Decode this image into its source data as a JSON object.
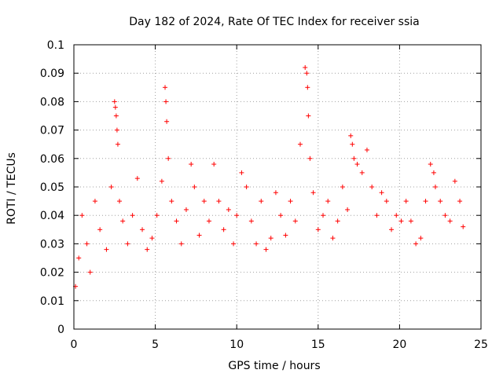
{
  "chart_data": {
    "type": "scatter",
    "title": "Day 182 of 2024, Rate Of TEC Index for receiver ssia",
    "xlabel": "GPS time / hours",
    "ylabel": "ROTI / TECUs",
    "xlim": [
      0,
      25
    ],
    "ylim": [
      0,
      0.1
    ],
    "xticks": [
      "0",
      "5",
      "10",
      "15",
      "20",
      "25"
    ],
    "yticks": [
      "0",
      "0.01",
      "0.02",
      "0.03",
      "0.04",
      "0.05",
      "0.06",
      "0.07",
      "0.08",
      "0.09",
      "0.1"
    ],
    "grid": true,
    "marker": "plus",
    "series": [
      {
        "color": "#ff0000",
        "x": [
          0.1,
          0.3,
          0.5,
          0.8,
          1.0,
          1.3,
          1.6,
          2.0,
          2.3,
          2.5,
          2.55,
          2.6,
          2.65,
          2.7,
          2.8,
          3.0,
          3.3,
          3.6,
          3.9,
          4.2,
          4.5,
          4.8,
          5.1,
          5.4,
          5.6,
          5.65,
          5.7,
          5.8,
          6.0,
          6.3,
          6.6,
          6.9,
          7.2,
          7.4,
          7.7,
          8.0,
          8.3,
          8.6,
          8.9,
          9.2,
          9.5,
          9.8,
          10.0,
          10.3,
          10.6,
          10.9,
          11.2,
          11.5,
          11.8,
          12.1,
          12.4,
          12.7,
          13.0,
          13.3,
          13.6,
          13.9,
          14.2,
          14.3,
          14.35,
          14.4,
          14.5,
          14.7,
          15.0,
          15.3,
          15.6,
          15.9,
          16.2,
          16.5,
          16.8,
          17.0,
          17.1,
          17.2,
          17.4,
          17.7,
          18.0,
          18.3,
          18.6,
          18.9,
          19.2,
          19.5,
          19.8,
          20.1,
          20.4,
          20.7,
          21.0,
          21.3,
          21.6,
          21.9,
          22.1,
          22.2,
          22.5,
          22.8,
          23.1,
          23.4,
          23.7,
          23.9
        ],
        "y": [
          0.015,
          0.025,
          0.04,
          0.03,
          0.02,
          0.045,
          0.035,
          0.028,
          0.05,
          0.08,
          0.078,
          0.075,
          0.07,
          0.065,
          0.045,
          0.038,
          0.03,
          0.04,
          0.053,
          0.035,
          0.028,
          0.032,
          0.04,
          0.052,
          0.085,
          0.08,
          0.073,
          0.06,
          0.045,
          0.038,
          0.03,
          0.042,
          0.058,
          0.05,
          0.033,
          0.045,
          0.038,
          0.058,
          0.045,
          0.035,
          0.042,
          0.03,
          0.04,
          0.055,
          0.05,
          0.038,
          0.03,
          0.045,
          0.028,
          0.032,
          0.048,
          0.04,
          0.033,
          0.045,
          0.038,
          0.065,
          0.092,
          0.09,
          0.085,
          0.075,
          0.06,
          0.048,
          0.035,
          0.04,
          0.045,
          0.032,
          0.038,
          0.05,
          0.042,
          0.068,
          0.065,
          0.06,
          0.058,
          0.055,
          0.063,
          0.05,
          0.04,
          0.048,
          0.045,
          0.035,
          0.04,
          0.038,
          0.045,
          0.038,
          0.03,
          0.032,
          0.045,
          0.058,
          0.055,
          0.05,
          0.045,
          0.04,
          0.038,
          0.052,
          0.045,
          0.036
        ]
      }
    ]
  }
}
